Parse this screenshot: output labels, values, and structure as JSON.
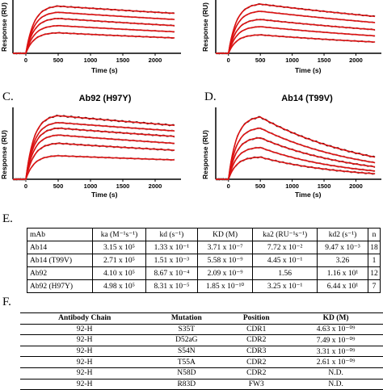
{
  "panels": {
    "A": {
      "letter": "",
      "title": "",
      "ylabel": "Response (RU)",
      "xlabel": "Time (s)",
      "xticks": [
        "0",
        "500",
        "1000",
        "1500",
        "2000"
      ]
    },
    "B": {
      "letter": "",
      "title": "",
      "ylabel": "Response (RU)",
      "xlabel": "Time (s)",
      "xticks": [
        "0",
        "500",
        "1000",
        "1500",
        "2000"
      ]
    },
    "C": {
      "letter": "C.",
      "title": "Ab92 (H97Y)",
      "ylabel": "Response (RU)",
      "xlabel": "Time (s)",
      "xticks": [
        "0",
        "500",
        "1000",
        "1500",
        "2000"
      ]
    },
    "D": {
      "letter": "D.",
      "title": "Ab14 (T99V)",
      "ylabel": "Response (RU)",
      "xlabel": "Time (s)",
      "xticks": [
        "0",
        "500",
        "1000",
        "1500",
        "2000"
      ]
    }
  },
  "colors": {
    "data": "#111111",
    "fit": "#dd1111",
    "grey": "#999999"
  },
  "chart_data": [
    {
      "type": "line",
      "panel": "A",
      "title": "",
      "xlabel": "Time (s)",
      "ylabel": "Response (RU)",
      "xlim": [
        -200,
        2400
      ],
      "series": [
        {
          "values": [
            [
              0,
              0
            ],
            [
              500,
              4.6
            ],
            [
              2300,
              3.9
            ]
          ]
        },
        {
          "values": [
            [
              0,
              0
            ],
            [
              500,
              4.0
            ],
            [
              2300,
              3.3
            ]
          ]
        },
        {
          "values": [
            [
              0,
              0
            ],
            [
              500,
              3.4
            ],
            [
              2300,
              2.7
            ]
          ]
        },
        {
          "values": [
            [
              0,
              0
            ],
            [
              500,
              2.7
            ],
            [
              2300,
              2.1
            ]
          ]
        },
        {
          "values": [
            [
              0,
              0
            ],
            [
              500,
              2.0
            ],
            [
              2300,
              1.5
            ]
          ]
        }
      ]
    },
    {
      "type": "line",
      "panel": "B",
      "title": "",
      "xlabel": "Time (s)",
      "ylabel": "Response (RU)",
      "xlim": [
        -200,
        2400
      ],
      "series": [
        {
          "values": [
            [
              0,
              0
            ],
            [
              500,
              4.8
            ],
            [
              2300,
              3.6
            ]
          ]
        },
        {
          "values": [
            [
              0,
              0
            ],
            [
              500,
              4.1
            ],
            [
              2300,
              3.0
            ]
          ]
        },
        {
          "values": [
            [
              0,
              0
            ],
            [
              500,
              3.3
            ],
            [
              2300,
              2.3
            ]
          ]
        },
        {
          "values": [
            [
              0,
              0
            ],
            [
              500,
              2.6
            ],
            [
              2300,
              1.7
            ]
          ]
        },
        {
          "values": [
            [
              0,
              0
            ],
            [
              500,
              1.8
            ],
            [
              2300,
              1.1
            ]
          ]
        }
      ]
    },
    {
      "type": "line",
      "panel": "C",
      "title": "Ab92 (H97Y)",
      "xlabel": "Time (s)",
      "ylabel": "Response (RU)",
      "xlim": [
        -200,
        2400
      ],
      "series": [
        {
          "values": [
            [
              0,
              0
            ],
            [
              500,
              4.6
            ],
            [
              2300,
              3.9
            ]
          ]
        },
        {
          "values": [
            [
              0,
              0
            ],
            [
              500,
              4.1
            ],
            [
              2300,
              3.5
            ]
          ]
        },
        {
          "values": [
            [
              0,
              0
            ],
            [
              500,
              3.7
            ],
            [
              2300,
              3.1
            ]
          ]
        },
        {
          "values": [
            [
              0,
              0
            ],
            [
              500,
              3.2
            ],
            [
              2300,
              2.6
            ]
          ]
        },
        {
          "values": [
            [
              0,
              0
            ],
            [
              500,
              2.6
            ],
            [
              2300,
              2.1
            ]
          ]
        },
        {
          "values": [
            [
              0,
              0
            ],
            [
              500,
              1.7
            ],
            [
              2300,
              1.4
            ]
          ]
        }
      ]
    },
    {
      "type": "line",
      "panel": "D",
      "title": "Ab14 (T99V)",
      "xlabel": "Time (s)",
      "ylabel": "Response (RU)",
      "xlim": [
        -200,
        2400
      ],
      "series": [
        {
          "values": [
            [
              0,
              0
            ],
            [
              500,
              4.5
            ],
            [
              2300,
              1.6
            ]
          ]
        },
        {
          "values": [
            [
              0,
              0
            ],
            [
              500,
              3.7
            ],
            [
              2300,
              1.2
            ]
          ]
        },
        {
          "values": [
            [
              0,
              0
            ],
            [
              500,
              3.0
            ],
            [
              2300,
              0.9
            ]
          ]
        },
        {
          "values": [
            [
              0,
              0
            ],
            [
              500,
              2.3
            ],
            [
              2300,
              0.6
            ]
          ]
        },
        {
          "values": [
            [
              0,
              0
            ],
            [
              500,
              1.6
            ],
            [
              2300,
              0.4
            ]
          ]
        }
      ]
    }
  ],
  "table_e": {
    "letter": "E.",
    "headers": [
      "mAb",
      "ka (M⁻¹s⁻¹)",
      "kd (s⁻¹)",
      "KD (M)",
      "ka2 (RU⁻¹s⁻¹)",
      "kd2 (s⁻¹)",
      "n"
    ],
    "rows": [
      [
        "Ab14",
        "3.15 x 10⁵",
        "1.33 x 10⁻¹",
        "3.71 x 10⁻⁷",
        "7.72 x 10⁻²",
        "9.47 x 10⁻³",
        "18"
      ],
      [
        "Ab14 (T99V)",
        "2.71 x 10⁵",
        "1.51 x 10⁻³",
        "5.58 x 10⁻⁹",
        "4.45 x 10⁻¹",
        "3.26",
        "1"
      ],
      [
        "Ab92",
        "4.10 x 10⁵",
        "8.67 x 10⁻⁴",
        "2.09 x 10⁻⁹",
        "1.56",
        "1.16 x 10¹",
        "12"
      ],
      [
        "Ab92 (H97Y)",
        "4.98 x 10⁵",
        "8.31 x 10⁻⁵",
        "1.85 x 10⁻¹⁰",
        "3.25 x 10⁻¹",
        "6.44 x 10¹",
        "7"
      ]
    ]
  },
  "table_f": {
    "letter": "F.",
    "headers": [
      "Antibody Chain",
      "Mutation",
      "Position",
      "KD (M)"
    ],
    "rows": [
      [
        "92-H",
        "S35T",
        "CDR1",
        "4.63 x 10⁻⁰⁹"
      ],
      [
        "92-H",
        "D52aG",
        "CDR2",
        "7.49 x 10⁻⁰⁹"
      ],
      [
        "92-H",
        "S54N",
        "CDR3",
        "3.31 x 10⁻⁰⁹"
      ],
      [
        "92-H",
        "T55A",
        "CDR2",
        "2.61 x 10⁻⁰⁹"
      ],
      [
        "92-H",
        "N58D",
        "CDR2",
        "N.D."
      ],
      [
        "92-H",
        "R83D",
        "FW3",
        "N.D."
      ]
    ]
  }
}
